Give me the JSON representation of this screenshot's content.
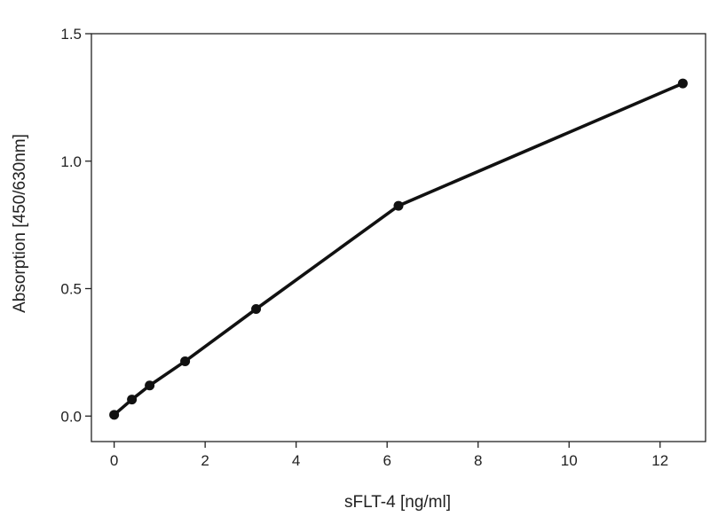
{
  "chart_data": {
    "type": "line",
    "title": "",
    "xlabel": "sFLT-4 [ng/ml]",
    "ylabel": "Absorption [450/630nm]",
    "xlim": [
      -0.5,
      13
    ],
    "ylim": [
      -0.1,
      1.5
    ],
    "x_ticks": [
      0,
      2,
      4,
      6,
      8,
      10,
      12
    ],
    "y_ticks": [
      0.0,
      0.5,
      1.0,
      1.5
    ],
    "x_tick_labels": [
      "0",
      "2",
      "4",
      "6",
      "8",
      "10",
      "12"
    ],
    "y_tick_labels": [
      "0.0",
      "0.5",
      "1.0",
      "1.5"
    ],
    "grid": false,
    "series": [
      {
        "x": [
          0,
          0.39,
          0.78,
          1.56,
          3.12,
          6.25,
          12.5
        ],
        "y": [
          0.005,
          0.065,
          0.12,
          0.215,
          0.42,
          0.825,
          1.305
        ]
      }
    ],
    "colors": {
      "line": "#111111",
      "marker": "#111111",
      "axis": "#222222"
    }
  }
}
